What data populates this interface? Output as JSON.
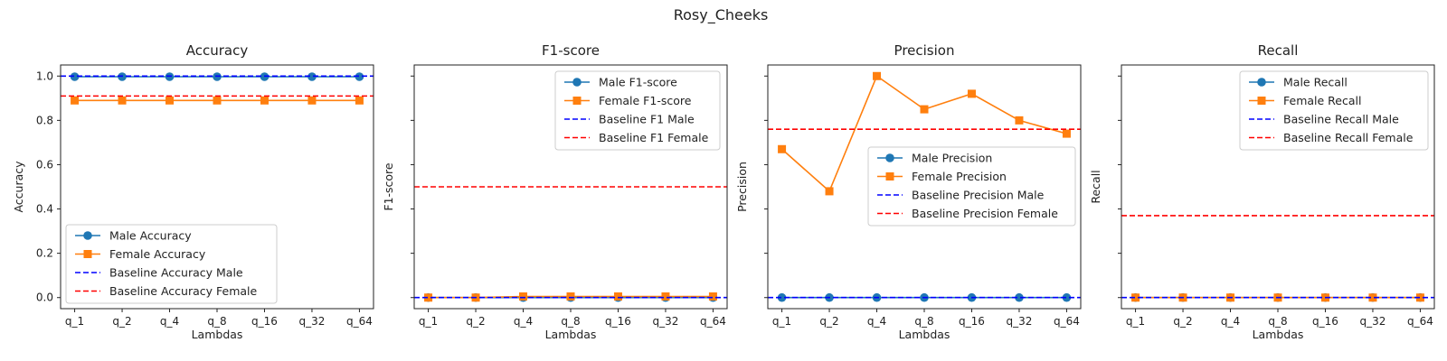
{
  "figure": {
    "suptitle": "Rosy_Cheeks"
  },
  "colors": {
    "male": "#1f77b4",
    "female": "#ff7f0e",
    "baseline_male": "#0000ff",
    "baseline_female": "#ff0000"
  },
  "chart_data": [
    {
      "type": "line",
      "title": "Accuracy",
      "xlabel": "Lambdas",
      "ylabel": "Accuracy",
      "categories": [
        "q_1",
        "q_2",
        "q_4",
        "q_8",
        "q_16",
        "q_32",
        "q_64"
      ],
      "ylim": [
        -0.05,
        1.05
      ],
      "yticks": [
        "0.0",
        "0.2",
        "0.4",
        "0.6",
        "0.8",
        "1.0"
      ],
      "show_ytick_labels": true,
      "legend_position": "lower-left",
      "series": [
        {
          "name": "Male Accuracy",
          "values": [
            0.997,
            0.997,
            0.997,
            0.997,
            0.997,
            0.997,
            0.997
          ],
          "marker": "circle",
          "color": "#1f77b4"
        },
        {
          "name": "Female Accuracy",
          "values": [
            0.89,
            0.89,
            0.89,
            0.89,
            0.89,
            0.89,
            0.89
          ],
          "marker": "square",
          "color": "#ff7f0e"
        }
      ],
      "baselines": [
        {
          "name": "Baseline Accuracy Male",
          "value": 1.0,
          "color": "#0000ff"
        },
        {
          "name": "Baseline Accuracy Female",
          "value": 0.91,
          "color": "#ff0000"
        }
      ]
    },
    {
      "type": "line",
      "title": "F1-score",
      "xlabel": "Lambdas",
      "ylabel": "F1-score",
      "categories": [
        "q_1",
        "q_2",
        "q_4",
        "q_8",
        "q_16",
        "q_32",
        "q_64"
      ],
      "ylim": [
        -0.05,
        1.05
      ],
      "yticks": [
        "0.0",
        "0.2",
        "0.4",
        "0.6",
        "0.8",
        "1.0"
      ],
      "show_ytick_labels": false,
      "legend_position": "upper-right",
      "series": [
        {
          "name": "Male F1-score",
          "values": [
            0.0,
            0.0,
            0.0,
            0.0,
            0.0,
            0.0,
            0.0
          ],
          "marker": "circle",
          "color": "#1f77b4"
        },
        {
          "name": "Female F1-score",
          "values": [
            0.0,
            0.0,
            0.005,
            0.005,
            0.005,
            0.005,
            0.005
          ],
          "marker": "square",
          "color": "#ff7f0e"
        }
      ],
      "baselines": [
        {
          "name": "Baseline F1 Male",
          "value": 0.0,
          "color": "#0000ff"
        },
        {
          "name": "Baseline F1 Female",
          "value": 0.5,
          "color": "#ff0000"
        }
      ]
    },
    {
      "type": "line",
      "title": "Precision",
      "xlabel": "Lambdas",
      "ylabel": "Precision",
      "categories": [
        "q_1",
        "q_2",
        "q_4",
        "q_8",
        "q_16",
        "q_32",
        "q_64"
      ],
      "ylim": [
        -0.05,
        1.05
      ],
      "yticks": [
        "0.0",
        "0.2",
        "0.4",
        "0.6",
        "0.8",
        "1.0"
      ],
      "show_ytick_labels": false,
      "legend_position": "center-right",
      "series": [
        {
          "name": "Male Precision",
          "values": [
            0.0,
            0.0,
            0.0,
            0.0,
            0.0,
            0.0,
            0.0
          ],
          "marker": "circle",
          "color": "#1f77b4"
        },
        {
          "name": "Female Precision",
          "values": [
            0.67,
            0.48,
            1.0,
            0.85,
            0.92,
            0.8,
            0.74
          ],
          "marker": "square",
          "color": "#ff7f0e"
        }
      ],
      "baselines": [
        {
          "name": "Baseline Precision Male",
          "value": 0.0,
          "color": "#0000ff"
        },
        {
          "name": "Baseline Precision Female",
          "value": 0.76,
          "color": "#ff0000"
        }
      ]
    },
    {
      "type": "line",
      "title": "Recall",
      "xlabel": "Lambdas",
      "ylabel": "Recall",
      "categories": [
        "q_1",
        "q_2",
        "q_4",
        "q_8",
        "q_16",
        "q_32",
        "q_64"
      ],
      "ylim": [
        -0.05,
        1.05
      ],
      "yticks": [
        "0.0",
        "0.2",
        "0.4",
        "0.6",
        "0.8",
        "1.0"
      ],
      "show_ytick_labels": false,
      "legend_position": "upper-right",
      "series": [
        {
          "name": "Male Recall",
          "values": [
            0.0,
            0.0,
            0.0,
            0.0,
            0.0,
            0.0,
            0.0
          ],
          "marker": "circle",
          "color": "#1f77b4"
        },
        {
          "name": "Female Recall",
          "values": [
            0.0,
            0.0,
            0.0,
            0.0,
            0.0,
            0.0,
            0.0
          ],
          "marker": "square",
          "color": "#ff7f0e"
        }
      ],
      "baselines": [
        {
          "name": "Baseline Recall Male",
          "value": 0.0,
          "color": "#0000ff"
        },
        {
          "name": "Baseline Recall Female",
          "value": 0.37,
          "color": "#ff0000"
        }
      ]
    }
  ]
}
